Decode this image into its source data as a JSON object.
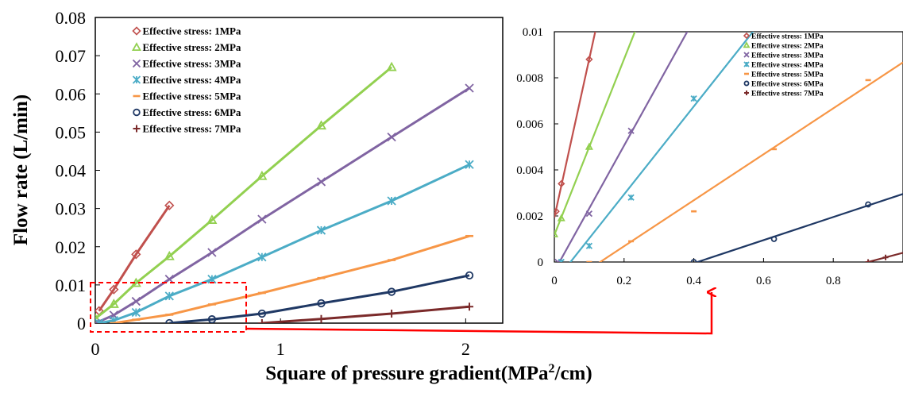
{
  "chart_data": [
    {
      "type": "line",
      "xlabel": "Square of pressure gradient(MPa²/cm)",
      "xlabel_parts": [
        "Square of pressure gradient(MPa",
        "2",
        "/cm)"
      ],
      "ylabel": "Flow rate (L/min)",
      "xlim": [
        0,
        2.2
      ],
      "ylim": [
        0,
        0.08
      ],
      "x_ticks": [
        0,
        1,
        2
      ],
      "x_tick_labels": [
        "0",
        "1",
        "2"
      ],
      "y_ticks": [
        0,
        0.01,
        0.02,
        0.03,
        0.04,
        0.05,
        0.06,
        0.07,
        0.08
      ],
      "y_tick_labels": [
        "0",
        "0.01",
        "0.02",
        "0.03",
        "0.04",
        "0.05",
        "0.06",
        "0.07",
        "0.08"
      ],
      "grid": false,
      "legend_position": "top-left",
      "annotation": "dashed red box around the origin region magnified in the inset",
      "series": [
        {
          "name": "Effective stress: 1MPa",
          "color": "#c0504d",
          "marker": "diamond",
          "x": [
            0.02,
            0.1,
            0.22,
            0.4
          ],
          "y": [
            0.0032,
            0.0088,
            0.018,
            0.0308
          ]
        },
        {
          "name": "Effective stress: 2MPa",
          "color": "#92d050",
          "marker": "triangle",
          "x": [
            0.0,
            0.1,
            0.22,
            0.4,
            0.63,
            0.9,
            1.22,
            1.6
          ],
          "y": [
            0.0012,
            0.005,
            0.0105,
            0.0175,
            0.027,
            0.0385,
            0.0517,
            0.067
          ]
        },
        {
          "name": "Effective stress: 3MPa",
          "color": "#8064a2",
          "marker": "cross",
          "x": [
            0.0,
            0.1,
            0.22,
            0.4,
            0.63,
            0.9,
            1.22,
            1.6,
            2.02
          ],
          "y": [
            0.0,
            0.0021,
            0.0057,
            0.0115,
            0.0185,
            0.0272,
            0.037,
            0.0487,
            0.0615
          ]
        },
        {
          "name": "Effective stress: 4MPa",
          "color": "#4bacc6",
          "marker": "asterisk",
          "x": [
            0.02,
            0.1,
            0.22,
            0.4,
            0.63,
            0.9,
            1.22,
            1.6,
            2.02
          ],
          "y": [
            0.0,
            0.0007,
            0.0028,
            0.0071,
            0.0115,
            0.0173,
            0.0243,
            0.032,
            0.0415
          ]
        },
        {
          "name": "Effective stress: 5MPa",
          "color": "#f79646",
          "marker": "dash",
          "x": [
            0.1,
            0.22,
            0.4,
            0.63,
            0.9,
            1.22,
            1.6,
            2.02
          ],
          "y": [
            0.0,
            0.0009,
            0.0022,
            0.0049,
            0.0079,
            0.0118,
            0.0165,
            0.0228
          ]
        },
        {
          "name": "Effective stress: 6MPa",
          "color": "#1f3864",
          "marker": "circle",
          "x": [
            0.4,
            0.63,
            0.9,
            1.22,
            1.6,
            2.02
          ],
          "y": [
            0.0,
            0.001,
            0.0025,
            0.0052,
            0.0082,
            0.0125
          ]
        },
        {
          "name": "Effective stress: 7MPa",
          "color": "#7b2a2a",
          "marker": "plus",
          "x": [
            0.9,
            1.22,
            1.6,
            2.02
          ],
          "y": [
            0.0,
            0.0011,
            0.0025,
            0.0043
          ]
        }
      ]
    },
    {
      "type": "line",
      "xlabel": "",
      "ylabel": "",
      "xlim": [
        0,
        1.0
      ],
      "ylim": [
        0,
        0.01
      ],
      "x_ticks": [
        0,
        0.2,
        0.4,
        0.6,
        0.8
      ],
      "x_tick_labels": [
        "0",
        "0.2",
        "0.4",
        "0.6",
        "0.8"
      ],
      "y_ticks": [
        0,
        0.002,
        0.004,
        0.006,
        0.008,
        0.01
      ],
      "y_tick_labels": [
        "0",
        "0.002",
        "0.004",
        "0.006",
        "0.008",
        "0.01"
      ],
      "grid": false,
      "legend_position": "top-right",
      "series": [
        {
          "name": "Effective stress: 1MPa",
          "color": "#c0504d",
          "marker": "diamond",
          "x": [
            0.005,
            0.02,
            0.1
          ],
          "y": [
            0.0022,
            0.0034,
            0.0088
          ]
        },
        {
          "name": "Effective stress: 2MPa",
          "color": "#92d050",
          "marker": "triangle",
          "x": [
            0.0,
            0.02,
            0.1
          ],
          "y": [
            0.0012,
            0.0019,
            0.005
          ]
        },
        {
          "name": "Effective stress: 3MPa",
          "color": "#8064a2",
          "marker": "cross",
          "x": [
            0.01,
            0.1,
            0.22
          ],
          "y": [
            0.0,
            0.0021,
            0.0057
          ]
        },
        {
          "name": "Effective stress: 4MPa",
          "color": "#4bacc6",
          "marker": "asterisk",
          "x": [
            0.02,
            0.1,
            0.22,
            0.4
          ],
          "y": [
            0.0,
            0.0007,
            0.0028,
            0.0071
          ]
        },
        {
          "name": "Effective stress: 5MPa",
          "color": "#f79646",
          "marker": "dash",
          "x": [
            0.1,
            0.22,
            0.4,
            0.63,
            0.9
          ],
          "y": [
            0.0,
            0.0009,
            0.0022,
            0.0049,
            0.0079
          ]
        },
        {
          "name": "Effective stress: 6MPa",
          "color": "#1f3864",
          "marker": "circle",
          "x": [
            0.4,
            0.63,
            0.9
          ],
          "y": [
            0.0,
            0.001,
            0.0025
          ]
        },
        {
          "name": "Effective stress: 7MPa",
          "color": "#7b2a2a",
          "marker": "plus",
          "x": [
            0.9,
            0.95
          ],
          "y": [
            0.0,
            0.0002
          ]
        }
      ]
    }
  ]
}
